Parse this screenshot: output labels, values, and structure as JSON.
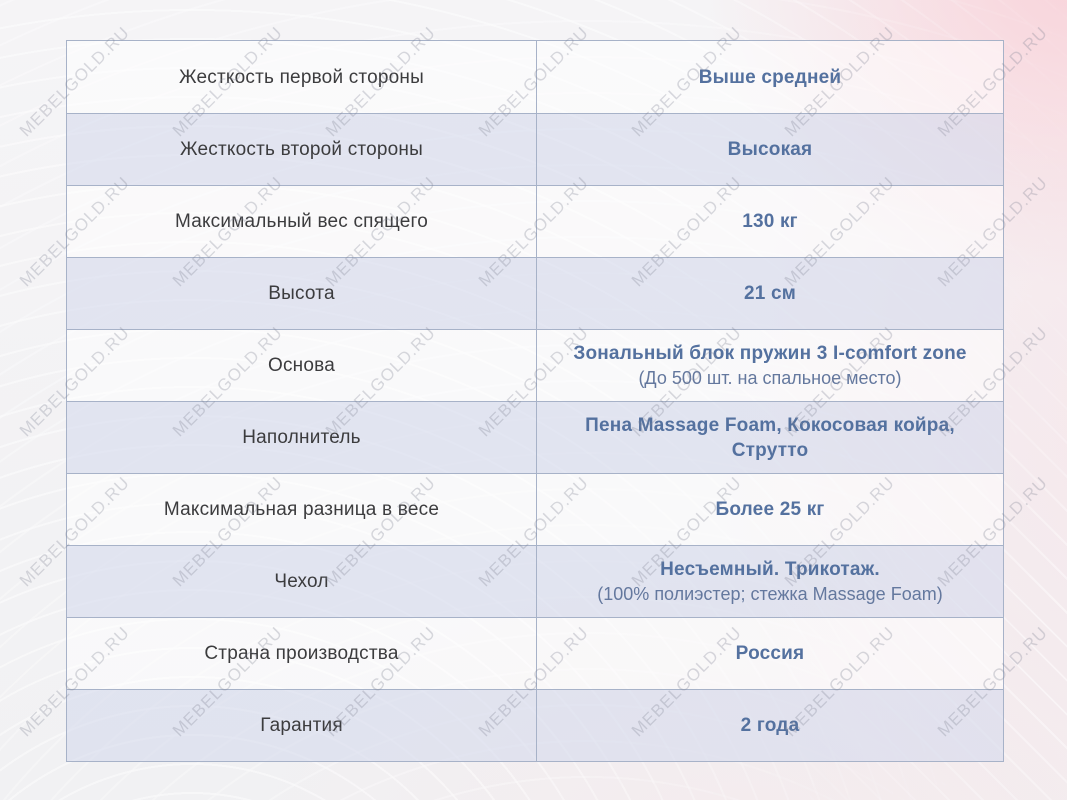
{
  "watermark": {
    "text": "MEBELGOLD.RU"
  },
  "table": {
    "rows": [
      {
        "label": "Жесткость первой стороны",
        "value": "Выше средней"
      },
      {
        "label": "Жесткость второй стороны",
        "value": "Высокая"
      },
      {
        "label": "Максимальный вес спящего",
        "value": "130 кг"
      },
      {
        "label": "Высота",
        "value": "21 см"
      },
      {
        "label": "Основа",
        "value": "Зональный блок пружин 3 I-comfort zone",
        "note": "(До 500 шт. на спальное место)"
      },
      {
        "label": "Наполнитель",
        "value": "Пена Massage Foam, Кокосовая койра, Струтто"
      },
      {
        "label": "Максимальная разница в весе",
        "value": "Более 25 кг"
      },
      {
        "label": "Чехол",
        "value": "Несъемный. Трикотаж.",
        "note": "(100% полиэстер; стежка Massage Foam)"
      },
      {
        "label": "Страна производства",
        "value": "Россия"
      },
      {
        "label": "Гарантия",
        "value": "2 года"
      }
    ]
  },
  "colors": {
    "value_blue": "#54719f",
    "label_dark": "#3c3c3e",
    "border": "#a7b2c8",
    "row_alt": "#dfe3f0",
    "background_pink": "#f9e5e8",
    "background_grey": "#f2f2f4"
  }
}
